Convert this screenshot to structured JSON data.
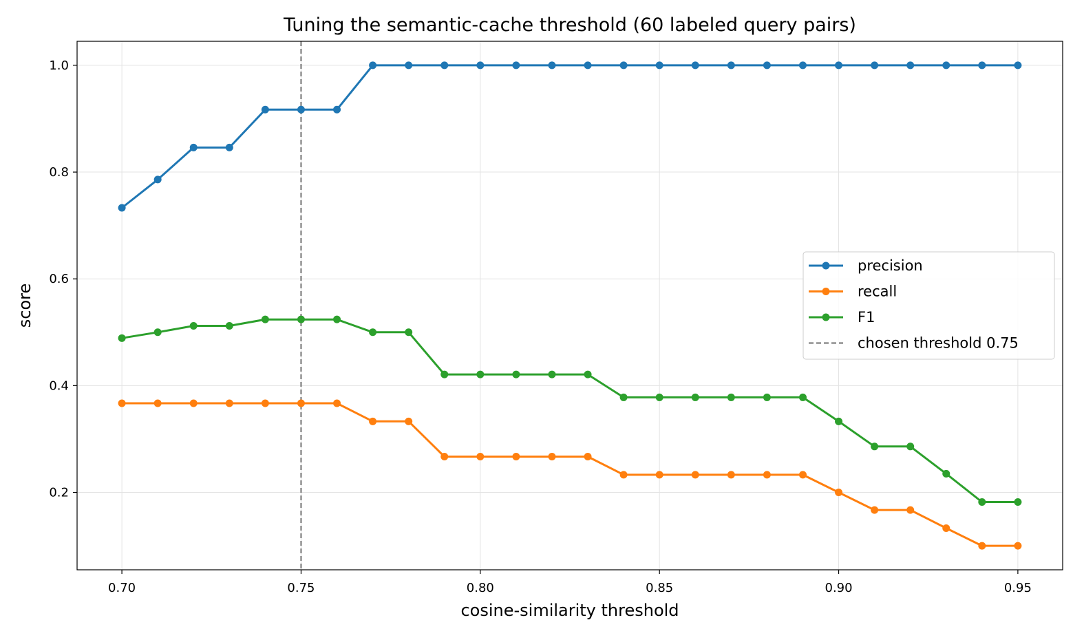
{
  "chart_data": {
    "type": "line",
    "title": "Tuning the semantic-cache threshold (60 labeled query pairs)",
    "xlabel": "cosine-similarity threshold",
    "ylabel": "score",
    "xlim": [
      0.6875,
      0.9625
    ],
    "ylim": [
      0.055,
      1.045
    ],
    "xticks": [
      "0.70",
      "0.75",
      "0.80",
      "0.85",
      "0.90",
      "0.95"
    ],
    "yticks": [
      "0.2",
      "0.4",
      "0.6",
      "0.8",
      "1.0"
    ],
    "grid": true,
    "legend_position": "center-right",
    "x": [
      0.7,
      0.71,
      0.72,
      0.73,
      0.74,
      0.75,
      0.76,
      0.77,
      0.78,
      0.79,
      0.8,
      0.81,
      0.82,
      0.83,
      0.84,
      0.85,
      0.86,
      0.87,
      0.88,
      0.89,
      0.9,
      0.91,
      0.92,
      0.93,
      0.94,
      0.95
    ],
    "series": [
      {
        "name": "precision",
        "color": "#1f77b4",
        "values": [
          0.733,
          0.786,
          0.846,
          0.846,
          0.917,
          0.917,
          0.917,
          1.0,
          1.0,
          1.0,
          1.0,
          1.0,
          1.0,
          1.0,
          1.0,
          1.0,
          1.0,
          1.0,
          1.0,
          1.0,
          1.0,
          1.0,
          1.0,
          1.0,
          1.0,
          1.0
        ]
      },
      {
        "name": "recall",
        "color": "#ff7f0e",
        "values": [
          0.367,
          0.367,
          0.367,
          0.367,
          0.367,
          0.367,
          0.367,
          0.333,
          0.333,
          0.267,
          0.267,
          0.267,
          0.267,
          0.267,
          0.233,
          0.233,
          0.233,
          0.233,
          0.233,
          0.233,
          0.2,
          0.167,
          0.167,
          0.133,
          0.1,
          0.1
        ]
      },
      {
        "name": "F1",
        "color": "#2ca02c",
        "values": [
          0.489,
          0.5,
          0.512,
          0.512,
          0.524,
          0.524,
          0.524,
          0.5,
          0.5,
          0.421,
          0.421,
          0.421,
          0.421,
          0.421,
          0.378,
          0.378,
          0.378,
          0.378,
          0.378,
          0.378,
          0.333,
          0.286,
          0.286,
          0.235,
          0.182,
          0.182
        ]
      }
    ],
    "reference_line": {
      "name": "chosen threshold 0.75",
      "x": 0.75,
      "color": "#808080",
      "style": "dashed"
    }
  }
}
